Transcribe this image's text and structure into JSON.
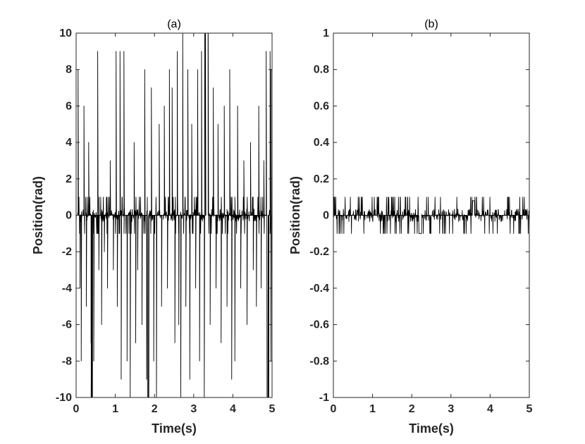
{
  "chart_data": [
    {
      "type": "line",
      "title": "(a)",
      "xlabel": "Time(s)",
      "ylabel": "Position(rad)",
      "xlim": [
        0,
        5
      ],
      "ylim": [
        -10,
        10
      ],
      "xticks": [
        0,
        1,
        2,
        3,
        4,
        5
      ],
      "yticks": [
        -10,
        -8,
        -6,
        -4,
        -2,
        0,
        2,
        4,
        6,
        8,
        10
      ],
      "grid": false,
      "line_color": "#000000",
      "noise_amplitude": 1,
      "spikes": [
        {
          "x": 0.05,
          "y": 8
        },
        {
          "x": 0.1,
          "y": -4
        },
        {
          "x": 0.13,
          "y": -8
        },
        {
          "x": 0.2,
          "y": 6
        },
        {
          "x": 0.26,
          "y": -5
        },
        {
          "x": 0.32,
          "y": 4
        },
        {
          "x": 0.38,
          "y": -7
        },
        {
          "x": 0.4,
          "y": -10
        },
        {
          "x": 0.45,
          "y": -8
        },
        {
          "x": 0.55,
          "y": 9
        },
        {
          "x": 0.58,
          "y": -3
        },
        {
          "x": 0.65,
          "y": -6
        },
        {
          "x": 0.72,
          "y": -2
        },
        {
          "x": 0.8,
          "y": -4
        },
        {
          "x": 0.87,
          "y": 3
        },
        {
          "x": 0.95,
          "y": -3
        },
        {
          "x": 1.02,
          "y": 9
        },
        {
          "x": 1.05,
          "y": -5
        },
        {
          "x": 1.12,
          "y": 9
        },
        {
          "x": 1.15,
          "y": -9
        },
        {
          "x": 1.22,
          "y": 9
        },
        {
          "x": 1.3,
          "y": -8
        },
        {
          "x": 1.38,
          "y": -10
        },
        {
          "x": 1.48,
          "y": 4
        },
        {
          "x": 1.52,
          "y": -7
        },
        {
          "x": 1.57,
          "y": -3
        },
        {
          "x": 1.68,
          "y": -6
        },
        {
          "x": 1.75,
          "y": 8
        },
        {
          "x": 1.8,
          "y": -9
        },
        {
          "x": 1.85,
          "y": -10
        },
        {
          "x": 1.92,
          "y": 7
        },
        {
          "x": 1.98,
          "y": -8
        },
        {
          "x": 2.05,
          "y": -10
        },
        {
          "x": 2.12,
          "y": 5
        },
        {
          "x": 2.18,
          "y": -5
        },
        {
          "x": 2.25,
          "y": 6
        },
        {
          "x": 2.33,
          "y": -4
        },
        {
          "x": 2.38,
          "y": 8
        },
        {
          "x": 2.45,
          "y": 7
        },
        {
          "x": 2.52,
          "y": -7
        },
        {
          "x": 2.58,
          "y": 9
        },
        {
          "x": 2.62,
          "y": -6
        },
        {
          "x": 2.67,
          "y": -10
        },
        {
          "x": 2.72,
          "y": 10
        },
        {
          "x": 2.8,
          "y": -5
        },
        {
          "x": 2.85,
          "y": 8
        },
        {
          "x": 2.9,
          "y": -9
        },
        {
          "x": 2.95,
          "y": 5
        },
        {
          "x": 3.05,
          "y": -4
        },
        {
          "x": 3.1,
          "y": 8
        },
        {
          "x": 3.15,
          "y": -8
        },
        {
          "x": 3.2,
          "y": 9
        },
        {
          "x": 3.27,
          "y": -10
        },
        {
          "x": 3.3,
          "y": 10
        },
        {
          "x": 3.37,
          "y": 10
        },
        {
          "x": 3.42,
          "y": -6
        },
        {
          "x": 3.5,
          "y": 7
        },
        {
          "x": 3.57,
          "y": -4
        },
        {
          "x": 3.62,
          "y": 5
        },
        {
          "x": 3.7,
          "y": -7
        },
        {
          "x": 3.78,
          "y": 6
        },
        {
          "x": 3.85,
          "y": -5
        },
        {
          "x": 3.92,
          "y": 8
        },
        {
          "x": 3.97,
          "y": -9
        },
        {
          "x": 4.05,
          "y": -8
        },
        {
          "x": 4.12,
          "y": 6
        },
        {
          "x": 4.2,
          "y": -4
        },
        {
          "x": 4.28,
          "y": 3
        },
        {
          "x": 4.36,
          "y": -6
        },
        {
          "x": 4.45,
          "y": 4
        },
        {
          "x": 4.52,
          "y": -3
        },
        {
          "x": 4.6,
          "y": -5
        },
        {
          "x": 4.66,
          "y": 6
        },
        {
          "x": 4.72,
          "y": -4
        },
        {
          "x": 4.79,
          "y": 3
        },
        {
          "x": 4.85,
          "y": 9
        },
        {
          "x": 4.9,
          "y": -10
        },
        {
          "x": 4.95,
          "y": 9
        },
        {
          "x": 4.97,
          "y": -8
        }
      ],
      "plateaus": [
        {
          "from": 0.38,
          "to": 0.42,
          "y": -10
        },
        {
          "from": 1.82,
          "to": 1.86,
          "y": -10
        },
        {
          "from": 3.28,
          "to": 3.37,
          "y": 10
        },
        {
          "from": 4.87,
          "to": 4.92,
          "y": -10
        },
        {
          "from": 4.97,
          "to": 5.0,
          "y": 8
        }
      ]
    },
    {
      "type": "line",
      "title": "(b)",
      "xlabel": "Time(s)",
      "ylabel": "Position(rad)",
      "xlim": [
        0,
        5
      ],
      "ylim": [
        -1,
        1
      ],
      "xticks": [
        0,
        1,
        2,
        3,
        4,
        5
      ],
      "yticks": [
        -1,
        -0.8,
        -0.6,
        -0.4,
        -0.2,
        0,
        0.2,
        0.4,
        0.6,
        0.8,
        1
      ],
      "grid": false,
      "line_color": "#000000",
      "noise_amplitude": 0.1,
      "spikes": [],
      "plateaus": [
        {
          "from": 2.18,
          "to": 2.25,
          "y": -0.1
        },
        {
          "from": 3.55,
          "to": 3.6,
          "y": 0.08
        }
      ]
    }
  ]
}
